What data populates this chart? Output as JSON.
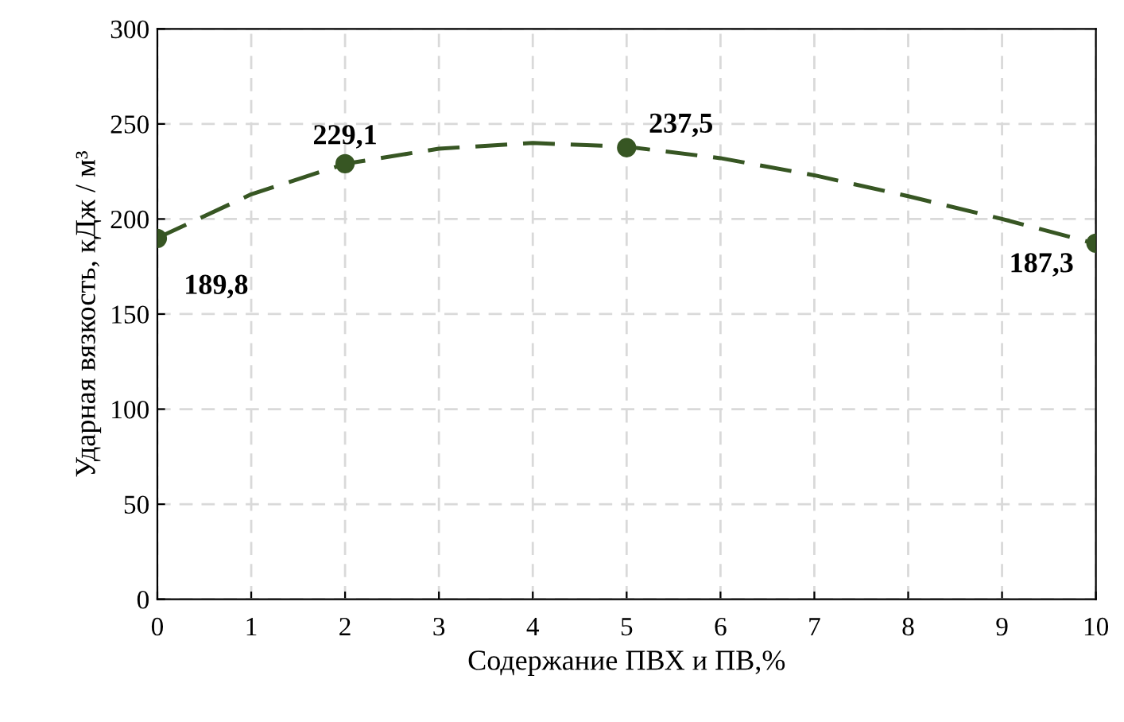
{
  "chart_data": {
    "type": "line",
    "xlabel": "Содержание ПВХ и ПВ,%",
    "ylabel": "Ударная вязкость, кДж / м³",
    "xlim": [
      0,
      10
    ],
    "ylim": [
      0,
      300
    ],
    "xticks": [
      0,
      1,
      2,
      3,
      4,
      5,
      6,
      7,
      8,
      9,
      10
    ],
    "yticks": [
      0,
      50,
      100,
      150,
      200,
      250,
      300
    ],
    "grid": true,
    "legend": false,
    "series": [
      {
        "type": "scatter",
        "color": "#375623",
        "marker": "circle",
        "x": [
          0,
          2,
          5,
          10
        ],
        "values": [
          189.8,
          229.1,
          237.5,
          187.3
        ],
        "value_labels": [
          "189,8",
          "229,1",
          "237,5",
          "187,3"
        ]
      },
      {
        "color": "#375623",
        "line_style": "dashed",
        "marker": "none",
        "x": [
          0,
          1,
          2,
          3,
          4,
          5,
          6,
          7,
          8,
          9,
          10
        ],
        "values": [
          190,
          213,
          229,
          237,
          240,
          238,
          232,
          223,
          212,
          200,
          187
        ]
      }
    ]
  }
}
